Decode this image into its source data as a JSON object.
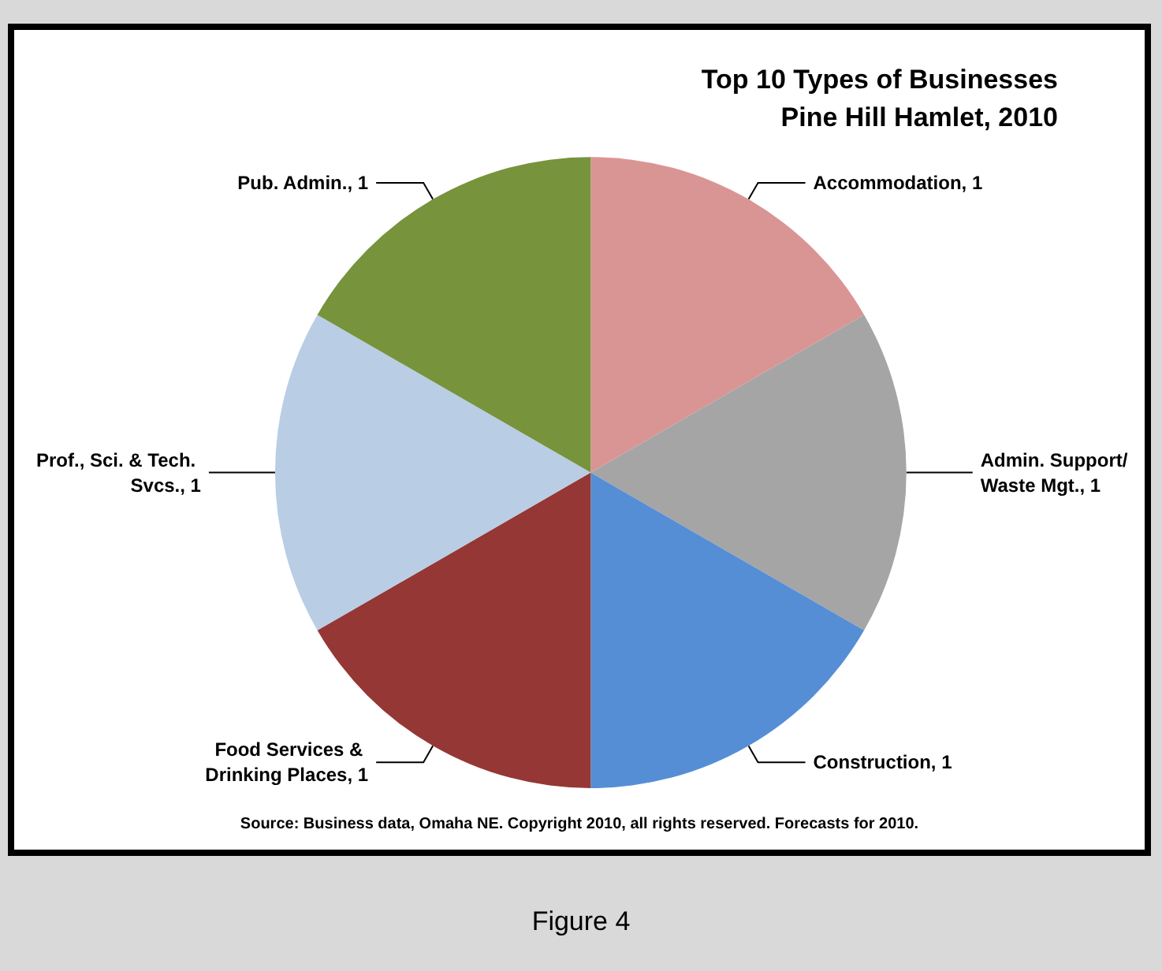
{
  "chart_data": {
    "type": "pie",
    "title": "Top 10 Types of Businesses",
    "subtitle": "Pine Hill Hamlet, 2010",
    "categories": [
      "Accommodation",
      "Admin. Support/Waste Mgt.",
      "Construction",
      "Food Services & Drinking Places",
      "Prof., Sci. & Tech. Svcs.",
      "Pub. Admin."
    ],
    "values": [
      1,
      1,
      1,
      1,
      1,
      1
    ],
    "colors": [
      "#d99594",
      "#a5a5a5",
      "#558ed5",
      "#953735",
      "#b9cde5",
      "#77933c"
    ],
    "value_labels": [
      "1",
      "1",
      "1",
      "1",
      "1",
      "1"
    ],
    "legend": false,
    "annotations": [
      "Source: Business data, Omaha NE. Copyright 2010, all rights reserved. Forecasts for 2010.",
      "Figure 4"
    ]
  }
}
